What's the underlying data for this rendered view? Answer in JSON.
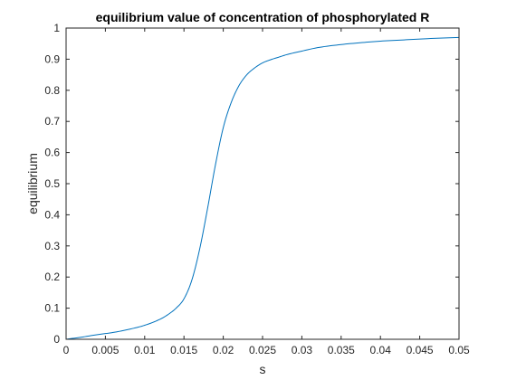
{
  "chart_data": {
    "type": "line",
    "title": "equilibrium value of concentration of  phosphorylated R",
    "xlabel": "s",
    "ylabel": "equilibrium",
    "xlim": [
      0,
      0.05
    ],
    "ylim": [
      0,
      1
    ],
    "grid": false,
    "line_color": "#0072BD",
    "x_ticks": [
      "0",
      "0.005",
      "0.01",
      "0.015",
      "0.02",
      "0.025",
      "0.03",
      "0.035",
      "0.04",
      "0.045",
      "0.05"
    ],
    "y_ticks": [
      "0",
      "0.1",
      "0.2",
      "0.3",
      "0.4",
      "0.5",
      "0.6",
      "0.7",
      "0.8",
      "0.9",
      "1"
    ],
    "series": [
      {
        "x": [
          0,
          0.002,
          0.004,
          0.006,
          0.008,
          0.01,
          0.012,
          0.013,
          0.014,
          0.015,
          0.016,
          0.017,
          0.018,
          0.019,
          0.02,
          0.021,
          0.022,
          0.023,
          0.024,
          0.025,
          0.026,
          0.027,
          0.028,
          0.03,
          0.032,
          0.035,
          0.038,
          0.04,
          0.043,
          0.046,
          0.05
        ],
        "y": [
          0,
          0.007,
          0.015,
          0.022,
          0.032,
          0.045,
          0.065,
          0.08,
          0.1,
          0.13,
          0.19,
          0.29,
          0.42,
          0.56,
          0.68,
          0.76,
          0.815,
          0.85,
          0.872,
          0.888,
          0.898,
          0.906,
          0.914,
          0.926,
          0.937,
          0.947,
          0.954,
          0.958,
          0.962,
          0.966,
          0.97
        ]
      }
    ]
  }
}
